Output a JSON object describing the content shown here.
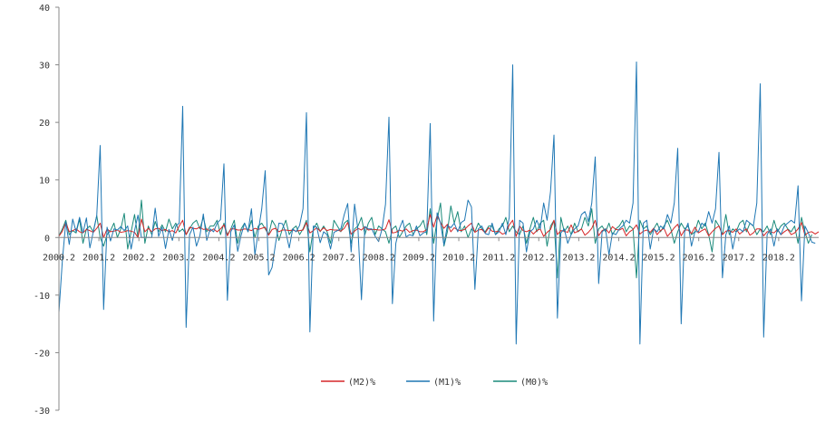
{
  "chart_data": {
    "type": "line",
    "title": "",
    "xlabel": "",
    "ylabel": "",
    "ylim": [
      -30,
      40
    ],
    "yticks": [
      -30,
      -20,
      -10,
      0,
      10,
      20,
      30,
      40
    ],
    "ytick_labels": [
      "-30",
      "-20",
      "-10",
      "0",
      "10",
      "20",
      "30",
      "40"
    ],
    "x_start": "2000.2",
    "x_end": "2018.7",
    "xtick_labels": [
      "2000.2",
      "2001.2",
      "2002.2",
      "2003.2",
      "2004.2",
      "2005.2",
      "2006.2",
      "2007.2",
      "2008.2",
      "2009.2",
      "2010.2",
      "2011.2",
      "2012.2",
      "2013.2",
      "2014.2",
      "2015.2",
      "2016.2",
      "2017.2",
      "2018.2"
    ],
    "grid": false,
    "legend_position": "bottom-center",
    "series": [
      {
        "name": "(M2)%",
        "color": "#d62728",
        "values": [
          0.2,
          1.1,
          2.6,
          1.0,
          1.2,
          1.5,
          1.0,
          0.8,
          1.4,
          1.2,
          0.9,
          1.6,
          2.5,
          0.0,
          1.5,
          1.0,
          1.1,
          1.3,
          0.9,
          1.0,
          1.2,
          1.1,
          0.9,
          0.0,
          3.2,
          1.0,
          1.6,
          1.0,
          1.5,
          1.6,
          1.2,
          1.4,
          1.0,
          1.2,
          0.8,
          2.0,
          3.0,
          0.5,
          1.8,
          1.6,
          1.5,
          1.8,
          1.4,
          1.5,
          1.1,
          1.5,
          1.0,
          1.5,
          2.2,
          0.3,
          1.5,
          1.5,
          1.3,
          1.3,
          1.5,
          1.4,
          1.2,
          1.6,
          1.4,
          1.6,
          1.8,
          0.4,
          1.4,
          1.6,
          1.0,
          1.3,
          1.3,
          1.2,
          1.3,
          1.1,
          1.2,
          1.3,
          2.6,
          0.8,
          1.2,
          1.7,
          1.1,
          1.7,
          1.2,
          1.4,
          1.3,
          1.3,
          1.1,
          1.6,
          2.6,
          0.6,
          1.1,
          1.6,
          1.3,
          1.9,
          1.3,
          1.4,
          1.4,
          1.3,
          1.3,
          1.5,
          3.1,
          0.8,
          0.9,
          1.3,
          1.1,
          1.5,
          0.9,
          1.2,
          1.3,
          1.0,
          1.0,
          1.4,
          4.0,
          1.8,
          3.8,
          2.6,
          1.6,
          2.3,
          1.0,
          1.7,
          1.3,
          1.2,
          1.4,
          2.0,
          2.5,
          0.9,
          1.3,
          1.4,
          0.8,
          1.7,
          1.1,
          1.0,
          1.1,
          0.6,
          0.8,
          2.2,
          3.0,
          0.2,
          2.0,
          1.2,
          1.0,
          1.3,
          0.6,
          1.2,
          1.5,
          0.2,
          0.9,
          1.4,
          3.0,
          0.5,
          1.2,
          1.1,
          0.9,
          2.2,
          0.8,
          1.1,
          1.5,
          0.4,
          0.9,
          1.6,
          3.0,
          0.3,
          1.2,
          1.5,
          0.8,
          1.9,
          1.4,
          1.3,
          1.6,
          0.3,
          1.0,
          1.4,
          2.2,
          0.6,
          1.1,
          1.3,
          0.9,
          1.6,
          0.5,
          1.2,
          1.6,
          0.2,
          0.9,
          1.7,
          2.3,
          0.3,
          1.3,
          1.3,
          0.7,
          1.8,
          0.8,
          1.2,
          1.5,
          0.3,
          1.0,
          1.6,
          2.0,
          0.5,
          1.1,
          1.2,
          0.9,
          1.5,
          0.6,
          1.1,
          1.5,
          0.4,
          0.8,
          1.5,
          1.5,
          0.3,
          1.0,
          1.0,
          0.8,
          1.4,
          0.5,
          1.0,
          1.4,
          0.5,
          0.8,
          1.5,
          2.6,
          0.4,
          0.9,
          1.0,
          0.6,
          1.0
        ]
      },
      {
        "name": "(M1)%",
        "color": "#1f77b4",
        "values": [
          -13.0,
          -4.0,
          2.7,
          -1.2,
          3.2,
          1.0,
          3.5,
          0.8,
          3.4,
          -1.8,
          1.0,
          3.8,
          16.0,
          -12.5,
          1.8,
          -0.6,
          1.5,
          1.3,
          1.9,
          1.2,
          2.0,
          -2.0,
          1.2,
          3.9,
          0.0,
          0.0,
          0.0,
          0.0,
          5.1,
          0.2,
          1.8,
          -1.9,
          1.4,
          -0.5,
          2.0,
          2.5,
          22.8,
          -15.6,
          0.5,
          1.8,
          -1.5,
          0.3,
          4.1,
          -0.5,
          1.5,
          1.0,
          2.5,
          3.1,
          12.8,
          -10.9,
          1.0,
          2.2,
          -2.4,
          0.4,
          2.5,
          1.0,
          5.0,
          -3.0,
          1.1,
          5.0,
          11.6,
          -6.5,
          -5.2,
          -1.1,
          2.5,
          2.4,
          0.9,
          -1.8,
          1.5,
          1.0,
          2.1,
          5.0,
          21.7,
          -16.4,
          2.0,
          1.8,
          -0.9,
          1.0,
          0.5,
          -2.0,
          0.9,
          1.2,
          1.5,
          4.0,
          5.9,
          -2.5,
          5.8,
          1.3,
          -10.8,
          1.9,
          1.5,
          1.5,
          0.2,
          -0.7,
          1.5,
          5.8,
          20.9,
          -11.5,
          -1.0,
          1.5,
          3.0,
          0.1,
          0.5,
          0.3,
          2.0,
          0.3,
          0.8,
          1.0,
          19.8,
          -14.5,
          4.3,
          2.5,
          -1.3,
          2.1,
          1.7,
          2.5,
          1.0,
          2.6,
          3.0,
          6.5,
          5.3,
          -9.0,
          1.5,
          2.0,
          0.7,
          0.5,
          2.5,
          0.5,
          1.0,
          2.5,
          0.5,
          3.5,
          30.0,
          -18.5,
          3.0,
          2.5,
          -2.5,
          1.0,
          1.5,
          3.0,
          1.5,
          6.0,
          3.0,
          8.0,
          17.8,
          -14.0,
          0.8,
          1.5,
          -1.0,
          0.5,
          1.5,
          2.0,
          4.0,
          4.5,
          2.8,
          6.0,
          14.0,
          -8.0,
          1.0,
          1.5,
          -3.0,
          0.8,
          0.5,
          1.5,
          2.0,
          3.0,
          2.5,
          6.0,
          30.5,
          -18.5,
          2.5,
          3.0,
          -2.0,
          1.5,
          1.0,
          2.0,
          1.5,
          4.0,
          2.5,
          6.0,
          15.5,
          -15.0,
          1.0,
          2.5,
          -1.5,
          1.0,
          1.0,
          2.5,
          2.0,
          4.5,
          2.5,
          5.0,
          14.8,
          -7.0,
          0.5,
          2.0,
          -2.0,
          1.0,
          1.5,
          1.0,
          3.0,
          2.5,
          2.0,
          6.0,
          26.7,
          -17.3,
          0.5,
          1.5,
          -1.5,
          1.5,
          0.5,
          2.0,
          2.5,
          3.0,
          2.5,
          9.0,
          -11.0,
          2.0,
          0.8,
          -0.8,
          -1.0
        ]
      },
      {
        "name": "(M0)%",
        "color": "#1a8a7a",
        "values": [
          0.3,
          1.5,
          3.0,
          0.5,
          1.2,
          0.8,
          3.2,
          -1.0,
          1.5,
          2.0,
          1.0,
          3.8,
          0.0,
          -1.5,
          0.5,
          1.2,
          2.5,
          0.0,
          1.5,
          4.2,
          -2.0,
          1.0,
          4.0,
          0.0,
          6.5,
          -1.0,
          2.0,
          0.5,
          2.8,
          1.0,
          2.2,
          1.0,
          3.2,
          1.5,
          2.5,
          1.0,
          1.5,
          0.5,
          1.5,
          2.5,
          3.0,
          1.5,
          3.5,
          1.0,
          2.0,
          2.0,
          3.0,
          0.5,
          2.5,
          0.5,
          1.5,
          3.0,
          -1.0,
          1.5,
          2.5,
          1.0,
          3.0,
          0.0,
          2.0,
          2.5,
          1.5,
          0.5,
          3.0,
          2.0,
          -0.5,
          1.5,
          3.0,
          0.5,
          1.5,
          2.0,
          0.5,
          1.5,
          3.0,
          -2.5,
          1.5,
          2.5,
          1.0,
          2.0,
          1.0,
          -1.0,
          3.0,
          2.0,
          1.0,
          2.5,
          3.0,
          -1.0,
          1.5,
          2.0,
          3.5,
          0.5,
          2.5,
          3.5,
          0.5,
          2.0,
          1.5,
          1.0,
          -1.0,
          1.5,
          2.0,
          0.0,
          1.0,
          2.0,
          2.5,
          0.5,
          1.5,
          2.0,
          3.0,
          0.5,
          5.0,
          -1.0,
          3.0,
          6.0,
          -1.5,
          1.0,
          5.5,
          2.5,
          4.5,
          1.0,
          2.0,
          0.0,
          1.5,
          1.0,
          2.5,
          1.5,
          1.0,
          2.0,
          2.0,
          0.5,
          1.5,
          2.0,
          3.5,
          1.0,
          2.0,
          1.0,
          0.5,
          2.0,
          -1.0,
          1.5,
          3.5,
          1.0,
          2.5,
          3.0,
          -1.5,
          2.0,
          3.0,
          -7.0,
          3.5,
          1.0,
          2.0,
          0.5,
          2.5,
          1.0,
          1.5,
          3.5,
          2.0,
          5.0,
          -1.0,
          1.5,
          2.0,
          1.0,
          2.5,
          0.5,
          1.5,
          2.0,
          3.0,
          1.0,
          2.0,
          1.5,
          -7.0,
          3.0,
          1.5,
          2.0,
          0.5,
          1.5,
          2.5,
          1.0,
          2.0,
          3.0,
          1.5,
          -1.0,
          1.0,
          2.5,
          1.5,
          2.0,
          0.5,
          1.0,
          3.0,
          1.5,
          2.5,
          0.5,
          -2.5,
          3.0,
          2.0,
          0.5,
          4.0,
          0.5,
          1.5,
          1.0,
          2.5,
          3.0,
          1.0,
          2.5,
          2.0,
          0.5,
          1.5,
          1.0,
          2.0,
          0.5,
          3.0,
          1.0,
          2.0,
          2.5,
          1.5,
          1.0,
          2.0,
          -1.0,
          3.5,
          1.0,
          -1.0,
          0.5
        ]
      }
    ]
  }
}
